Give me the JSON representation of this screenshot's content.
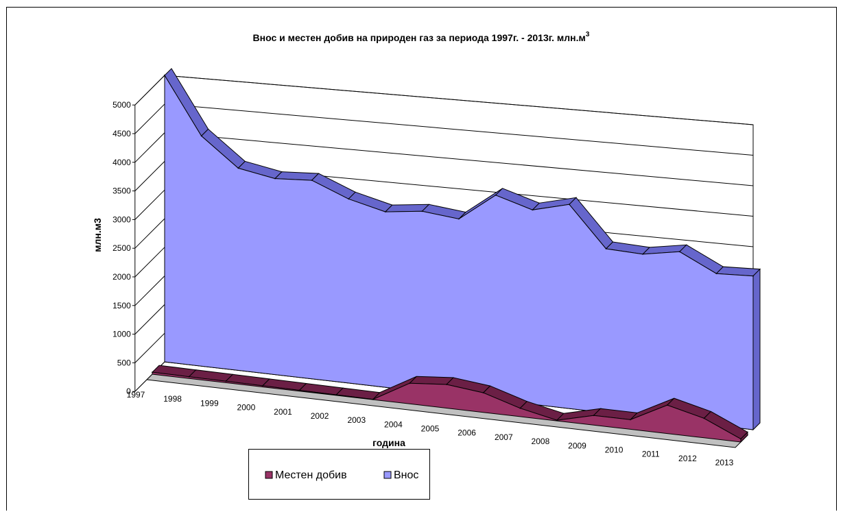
{
  "chart_data": {
    "type": "area",
    "title": "Внос и местен добив на природен газ за периода 1997г. - 2013г. млн.м",
    "title_superscript": "3",
    "xlabel": "година",
    "ylabel": "млн.м3",
    "categories": [
      "1997",
      "1998",
      "1999",
      "2000",
      "2001",
      "2002",
      "2003",
      "2004",
      "2005",
      "2006",
      "2007",
      "2008",
      "2009",
      "2010",
      "2011",
      "2012",
      "2013"
    ],
    "ylim": [
      0,
      5000
    ],
    "yticks": [
      "0",
      "500",
      "1000",
      "1500",
      "2000",
      "2500",
      "3000",
      "3500",
      "4000",
      "4500",
      "5000"
    ],
    "grid": true,
    "legend_position": "bottom",
    "series": [
      {
        "name": "Местен добив",
        "color": "#993366",
        "values": [
          35,
          30,
          25,
          20,
          15,
          10,
          5,
          350,
          400,
          330,
          140,
          10,
          160,
          160,
          470,
          320,
          50
        ]
      },
      {
        "name": "Внос",
        "color": "#9999ff",
        "values": [
          5000,
          4000,
          3500,
          3380,
          3410,
          3150,
          2990,
          3060,
          2990,
          3450,
          3260,
          3410,
          2730,
          2700,
          2800,
          2500,
          2520
        ]
      }
    ]
  }
}
